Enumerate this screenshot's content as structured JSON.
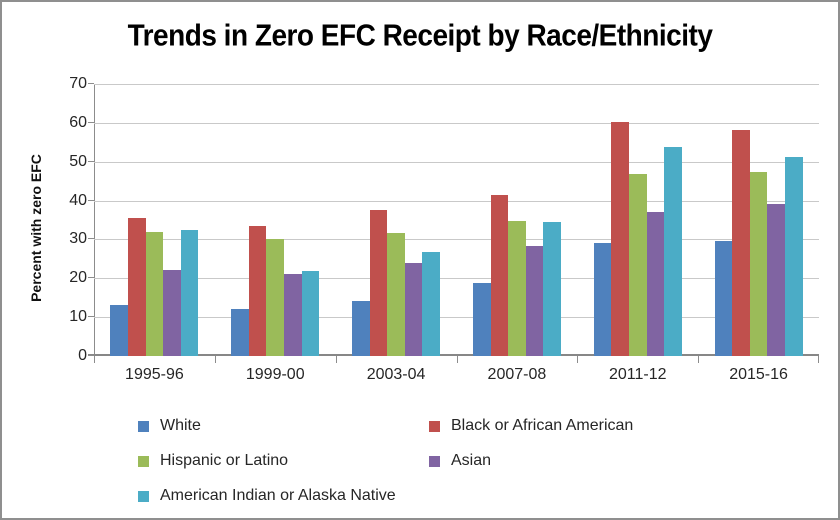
{
  "chart_data": {
    "type": "bar",
    "title": "Trends in Zero EFC Receipt by Race/Ethnicity",
    "xlabel": "",
    "ylabel": "Percent with zero EFC",
    "ylim": [
      0,
      70
    ],
    "yticks": [
      0,
      10,
      20,
      30,
      40,
      50,
      60,
      70
    ],
    "grid": true,
    "legend_position": "bottom",
    "categories": [
      "1995-96",
      "1999-00",
      "2003-04",
      "2007-08",
      "2011-12",
      "2015-16"
    ],
    "series": [
      {
        "name": "White",
        "color": "#4F81BD",
        "values": [
          13.2,
          12.0,
          14.1,
          18.7,
          29.0,
          29.6
        ]
      },
      {
        "name": "Black or African American",
        "color": "#C0504D",
        "values": [
          35.6,
          33.4,
          37.7,
          41.4,
          60.1,
          58.2
        ]
      },
      {
        "name": "Hispanic or Latino",
        "color": "#9BBB59",
        "values": [
          31.8,
          30.2,
          31.7,
          34.8,
          46.8,
          47.4
        ]
      },
      {
        "name": "Asian",
        "color": "#8064A2",
        "values": [
          22.2,
          21.0,
          23.9,
          28.4,
          37.0,
          39.1
        ]
      },
      {
        "name": "American Indian or Alaska Native",
        "color": "#4BACC6",
        "values": [
          32.4,
          21.8,
          26.8,
          34.5,
          53.8,
          51.1
        ]
      }
    ]
  },
  "colors": {
    "background": "#FFFFFF",
    "frame_border": "#8F8F8F",
    "gridline": "#C9C9C9",
    "axis": "#8C8C8C",
    "tick_label": "#262626",
    "title": "#000000"
  }
}
